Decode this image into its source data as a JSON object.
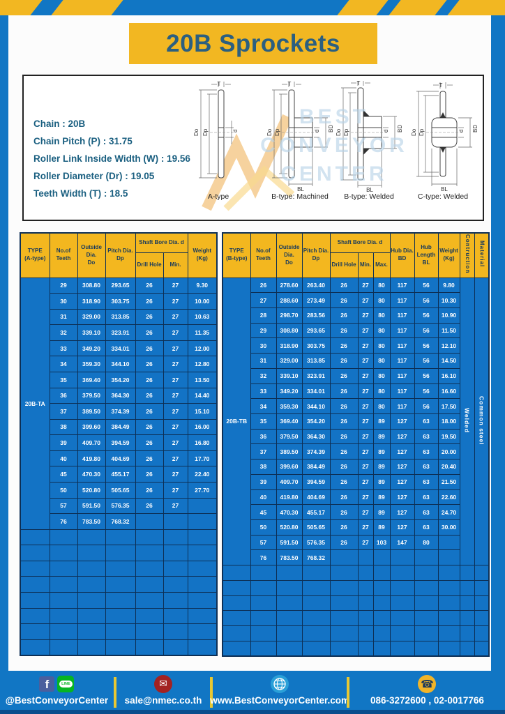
{
  "title": "20B Sprockets",
  "specs": {
    "lines": [
      "Chain : 20B",
      "Chain Pitch (P) : 31.75",
      "Roller Link Inside Width (W) : 19.56",
      "Roller Diameter (Dr) : 19.05",
      "Teeth Width (T) : 18.5"
    ]
  },
  "watermark": {
    "line1": "BEST",
    "line2": "CONVEYOR",
    "line3": "CENTER"
  },
  "diagrams": [
    {
      "caption": "A-type",
      "dims": {
        "t": "T",
        "dout": "Do",
        "dp": "Dp",
        "d": "d"
      }
    },
    {
      "caption": "B-type: Machined",
      "dims": {
        "t": "T",
        "dout": "Do",
        "dp": "Dp",
        "d": "d",
        "bd": "BD",
        "bl": "BL"
      }
    },
    {
      "caption": "B-type: Welded",
      "dims": {
        "t": "T",
        "dout": "Do",
        "dp": "Dp",
        "d": "d",
        "bd": "BD",
        "bl": "BL"
      }
    },
    {
      "caption": "C-type: Welded",
      "dims": {
        "t": "T",
        "dout": "Do",
        "dp": "Dp",
        "d": "d",
        "bd": "BD",
        "bl": "BL"
      }
    }
  ],
  "table_a": {
    "headers": {
      "type": "TYPE\n(A-type)",
      "teeth": "No.of\nTeeth",
      "outside": "Outside\nDia.\nDo",
      "pitch": "Pitch Dia.\nDp",
      "shaft_bore": "Shaft Bore Dia. d",
      "drill": "Drill Hole",
      "min": "Min.",
      "weight": "Weight\n(Kg)"
    },
    "type_label": "20B-TA",
    "rows": [
      [
        "29",
        "308.80",
        "293.65",
        "26",
        "27",
        "9.30"
      ],
      [
        "30",
        "318.90",
        "303.75",
        "26",
        "27",
        "10.00"
      ],
      [
        "31",
        "329.00",
        "313.85",
        "26",
        "27",
        "10.63"
      ],
      [
        "32",
        "339.10",
        "323.91",
        "26",
        "27",
        "11.35"
      ],
      [
        "33",
        "349.20",
        "334.01",
        "26",
        "27",
        "12.00"
      ],
      [
        "34",
        "359.30",
        "344.10",
        "26",
        "27",
        "12.80"
      ],
      [
        "35",
        "369.40",
        "354.20",
        "26",
        "27",
        "13.50"
      ],
      [
        "36",
        "379.50",
        "364.30",
        "26",
        "27",
        "14.40"
      ],
      [
        "37",
        "389.50",
        "374.39",
        "26",
        "27",
        "15.10"
      ],
      [
        "38",
        "399.60",
        "384.49",
        "26",
        "27",
        "16.00"
      ],
      [
        "39",
        "409.70",
        "394.59",
        "26",
        "27",
        "16.80"
      ],
      [
        "40",
        "419.80",
        "404.69",
        "26",
        "27",
        "17.70"
      ],
      [
        "45",
        "470.30",
        "455.17",
        "26",
        "27",
        "22.40"
      ],
      [
        "50",
        "520.80",
        "505.65",
        "26",
        "27",
        "27.70"
      ],
      [
        "57",
        "591.50",
        "576.35",
        "26",
        "27",
        ""
      ],
      [
        "76",
        "783.50",
        "768.32",
        "",
        "",
        ""
      ]
    ],
    "empty_rows": 8
  },
  "table_b": {
    "headers": {
      "type": "TYPE\n(B-type)",
      "teeth": "No.of\nTeeth",
      "outside": "Outside\nDia.\nDo",
      "pitch": "Pitch Dia.\nDp",
      "shaft_bore": "Shaft Bore Dia. d",
      "drill": "Drill Hole",
      "min": "Min.",
      "max": "Max.",
      "hub_dia": "Hub Dia.\nBD",
      "hub_len": "Hub\nLength\nBL",
      "weight": "Weight\n(Kg)",
      "construction": "Contruction",
      "material": "Material"
    },
    "type_label": "20B-TB",
    "construction": "Welded",
    "material": "Common  steel",
    "rows": [
      [
        "26",
        "278.60",
        "263.40",
        "26",
        "27",
        "80",
        "117",
        "56",
        "9.80"
      ],
      [
        "27",
        "288.60",
        "273.49",
        "26",
        "27",
        "80",
        "117",
        "56",
        "10.30"
      ],
      [
        "28",
        "298.70",
        "283.56",
        "26",
        "27",
        "80",
        "117",
        "56",
        "10.90"
      ],
      [
        "29",
        "308.80",
        "293.65",
        "26",
        "27",
        "80",
        "117",
        "56",
        "11.50"
      ],
      [
        "30",
        "318.90",
        "303.75",
        "26",
        "27",
        "80",
        "117",
        "56",
        "12.10"
      ],
      [
        "31",
        "329.00",
        "313.85",
        "26",
        "27",
        "80",
        "117",
        "56",
        "14.50"
      ],
      [
        "32",
        "339.10",
        "323.91",
        "26",
        "27",
        "80",
        "117",
        "56",
        "16.10"
      ],
      [
        "33",
        "349.20",
        "334.01",
        "26",
        "27",
        "80",
        "117",
        "56",
        "16.60"
      ],
      [
        "34",
        "359.30",
        "344.10",
        "26",
        "27",
        "80",
        "117",
        "56",
        "17.50"
      ],
      [
        "35",
        "369.40",
        "354.20",
        "26",
        "27",
        "89",
        "127",
        "63",
        "18.00"
      ],
      [
        "36",
        "379.50",
        "364.30",
        "26",
        "27",
        "89",
        "127",
        "63",
        "19.50"
      ],
      [
        "37",
        "389.50",
        "374.39",
        "26",
        "27",
        "89",
        "127",
        "63",
        "20.00"
      ],
      [
        "38",
        "399.60",
        "384.49",
        "26",
        "27",
        "89",
        "127",
        "63",
        "20.40"
      ],
      [
        "39",
        "409.70",
        "394.59",
        "26",
        "27",
        "89",
        "127",
        "63",
        "21.50"
      ],
      [
        "40",
        "419.80",
        "404.69",
        "26",
        "27",
        "89",
        "127",
        "63",
        "22.60"
      ],
      [
        "45",
        "470.30",
        "455.17",
        "26",
        "27",
        "89",
        "127",
        "63",
        "24.70"
      ],
      [
        "50",
        "520.80",
        "505.65",
        "26",
        "27",
        "89",
        "127",
        "63",
        "30.00"
      ],
      [
        "57",
        "591.50",
        "576.35",
        "26",
        "27",
        "103",
        "147",
        "80",
        ""
      ],
      [
        "76",
        "783.50",
        "768.32",
        "",
        "",
        "",
        "",
        "",
        ""
      ]
    ],
    "empty_rows": 6
  },
  "footer": {
    "social": "@BestConveyorCenter",
    "email": "sale@nmec.co.th",
    "website": "www.BestConveyorCenter.com",
    "phone": "086-3272600 , 02-0017766"
  },
  "icons": {
    "facebook": "f",
    "line": "LINE",
    "email": "✉",
    "phone": "☎"
  },
  "colors": {
    "frame_blue": "#1176c4",
    "cell_blue": "#1373c5",
    "accent_yellow": "#f2b722",
    "header_yellow": "#f3b71f",
    "border_navy": "#0d2f55",
    "title_blue": "#2b5f80"
  }
}
